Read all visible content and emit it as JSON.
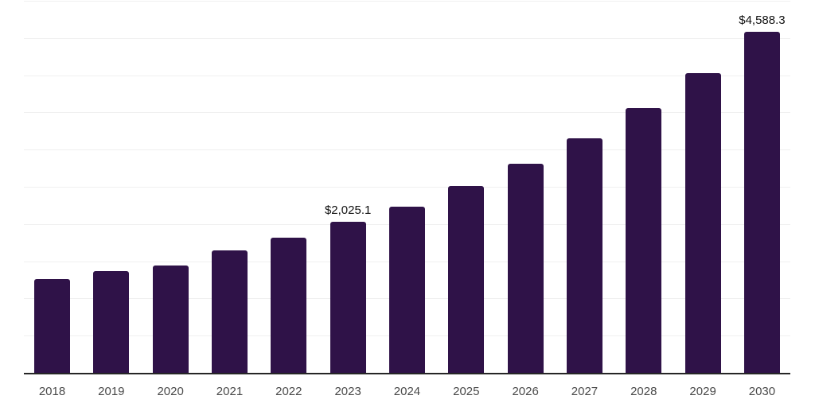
{
  "chart_data": {
    "type": "bar",
    "title": "",
    "xlabel": "",
    "ylabel": "",
    "categories": [
      "2018",
      "2019",
      "2020",
      "2021",
      "2022",
      "2023",
      "2024",
      "2025",
      "2026",
      "2027",
      "2028",
      "2029",
      "2030"
    ],
    "values": [
      1266,
      1372,
      1441,
      1643,
      1816,
      2025.1,
      2234,
      2507,
      2811,
      3156,
      3560,
      4031,
      4588.3
    ],
    "point_labels": [
      {
        "category": "2023",
        "text": "$2,025.1"
      },
      {
        "category": "2030",
        "text": "$4,588.3"
      }
    ],
    "ylim": [
      0,
      5000
    ],
    "gridline_step": 500,
    "grid": true,
    "legend_position": "none",
    "colors": {
      "bar": "#2F1248",
      "gridline": "#F0F0F0",
      "axis_line": "#262626",
      "tick_label": "#4A4A4A",
      "data_label": "#111111",
      "background": "#FFFFFF"
    }
  }
}
